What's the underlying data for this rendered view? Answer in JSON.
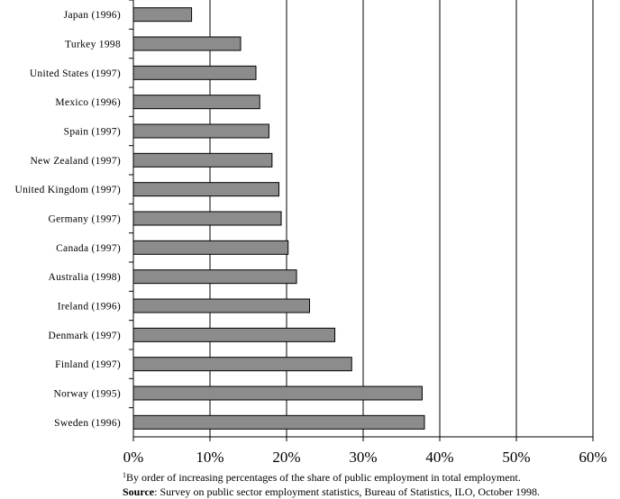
{
  "chart_data": {
    "type": "bar",
    "orientation": "horizontal",
    "categories": [
      "Japan (1996)",
      "Turkey 1998",
      "United States (1997)",
      "Mexico (1996)",
      "Spain (1997)",
      "New Zealand (1997)",
      "United Kingdom (1997)",
      "Germany (1997)",
      "Canada (1997)",
      "Australia (1998)",
      "Ireland (1996)",
      "Denmark (1997)",
      "Finland (1997)",
      "Norway (1995)",
      "Sweden (1996)"
    ],
    "values": [
      7.6,
      14.0,
      16.0,
      16.5,
      17.7,
      18.1,
      19.0,
      19.3,
      20.2,
      21.3,
      23.0,
      26.3,
      28.5,
      37.7,
      38.0
    ],
    "xlim": [
      0,
      60
    ],
    "xticks": [
      "0%",
      "10%",
      "20%",
      "30%",
      "40%",
      "50%",
      "60%"
    ],
    "grid": "vertical",
    "bar_color": "#8c8c8c",
    "edge_color": "#000000"
  },
  "footnote": {
    "marker": "1",
    "text": "By order of increasing percentages of the share of public employment in total employment.",
    "source_label": "Source",
    "source_text": ": Survey on public sector employment statistics, Bureau of Statistics, ILO, October 1998."
  }
}
